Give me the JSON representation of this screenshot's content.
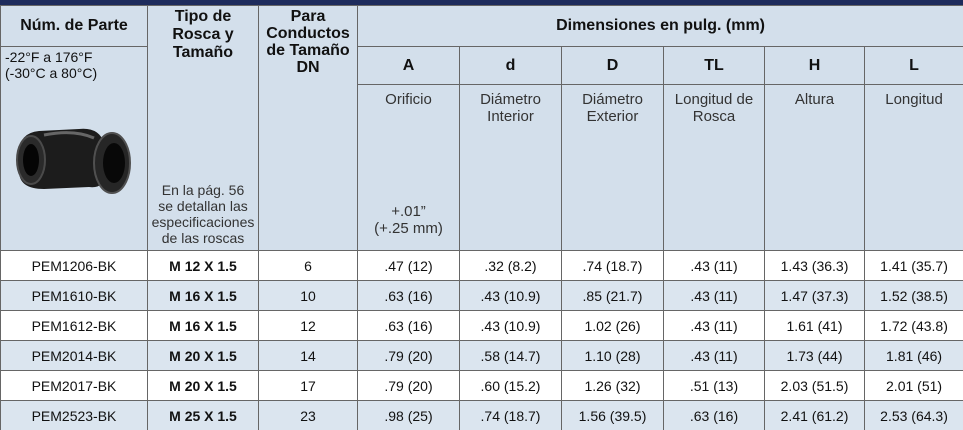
{
  "header": {
    "part_number": "Núm. de Parte",
    "temperature": [
      "-22°F a 176°F",
      "(-30°C a 80°C)"
    ],
    "thread": [
      "Tipo de",
      "Rosca y",
      "Tamaño"
    ],
    "thread_note": [
      "En la pág. 56",
      "se detallan las",
      "especificaciones",
      "de las roscas"
    ],
    "conduit": [
      "Para",
      "Conductos",
      "de Tamaño",
      "DN"
    ],
    "dimensions": "Dimensiones en pulg. (mm)",
    "columns": [
      {
        "letter": "A",
        "label": [
          "Orificio"
        ],
        "tolerance": [
          "+.01”",
          "(+.25 mm)"
        ]
      },
      {
        "letter": "d",
        "label": [
          "Diámetro",
          "Interior"
        ]
      },
      {
        "letter": "D",
        "label": [
          "Diámetro",
          "Exterior"
        ]
      },
      {
        "letter": "TL",
        "label": [
          "Longitud de",
          "Rosca"
        ]
      },
      {
        "letter": "H",
        "label": [
          "Altura"
        ]
      },
      {
        "letter": "L",
        "label": [
          "Longitud"
        ]
      }
    ]
  },
  "rows": [
    [
      "PEM1206-BK",
      "M 12 X 1.5",
      "6",
      ".47 (12)",
      ".32 (8.2)",
      ".74 (18.7)",
      ".43 (11)",
      "1.43 (36.3)",
      "1.41 (35.7)"
    ],
    [
      "PEM1610-BK",
      "M 16 X 1.5",
      "10",
      ".63 (16)",
      ".43 (10.9)",
      ".85 (21.7)",
      ".43 (11)",
      "1.47 (37.3)",
      "1.52 (38.5)"
    ],
    [
      "PEM1612-BK",
      "M 16 X 1.5",
      "12",
      ".63 (16)",
      ".43 (10.9)",
      "1.02 (26)",
      ".43 (11)",
      "1.61 (41)",
      "1.72 (43.8)"
    ],
    [
      "PEM2014-BK",
      "M 20 X 1.5",
      "14",
      ".79 (20)",
      ".58 (14.7)",
      "1.10 (28)",
      ".43 (11)",
      "1.73 (44)",
      "1.81 (46)"
    ],
    [
      "PEM2017-BK",
      "M 20 X 1.5",
      "17",
      ".79 (20)",
      ".60 (15.2)",
      "1.26 (32)",
      ".51 (13)",
      "2.03 (51.5)",
      "2.01 (51)"
    ],
    [
      "PEM2523-BK",
      "M 25 X 1.5",
      "23",
      ".98 (25)",
      ".74 (18.7)",
      "1.56 (39.5)",
      ".63 (16)",
      "2.41 (61.2)",
      "2.53 (64.3)"
    ]
  ]
}
